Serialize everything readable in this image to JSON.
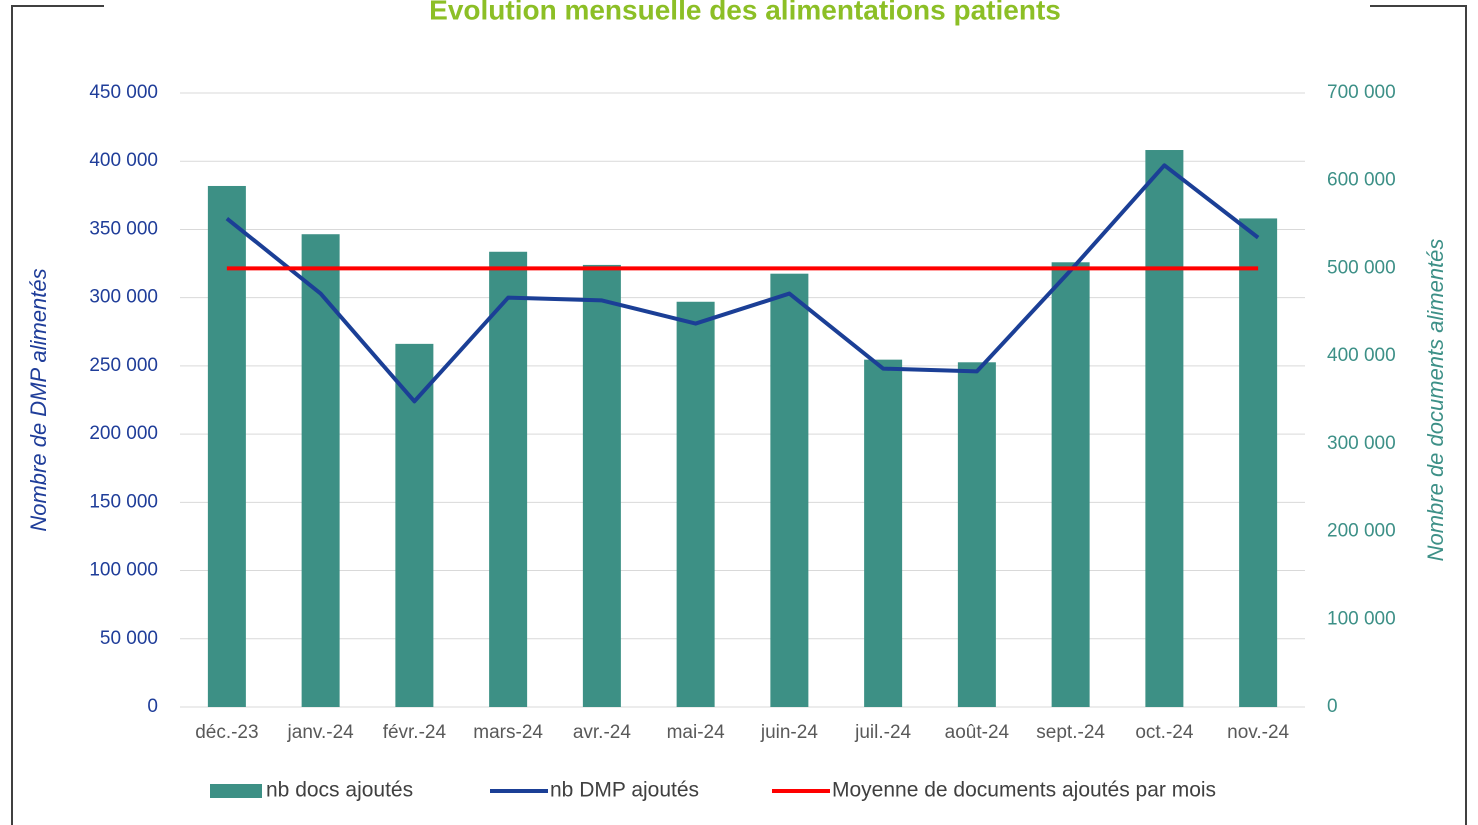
{
  "chart_data": {
    "type": "bar-line",
    "title": "Évolution mensuelle des alimentations patients",
    "ylabel": "Nombre de DMP alimentés",
    "y2label": "Nombre de documents alimentés",
    "categories": [
      "déc.-23",
      "janv.-24",
      "févr.-24",
      "mars-24",
      "avr.-24",
      "mai-24",
      "juin-24",
      "juil.-24",
      "août-24",
      "sept.-24",
      "oct.-24",
      "nov.-24"
    ],
    "series": [
      {
        "name": "nb docs ajoutés",
        "type": "bar",
        "axis": "y2",
        "color": "#3d9085",
        "values": [
          594000,
          539000,
          414000,
          519000,
          504000,
          462000,
          494000,
          396000,
          393000,
          507000,
          635000,
          557000
        ]
      },
      {
        "name": "nb DMP ajoutés",
        "type": "line",
        "axis": "y",
        "color": "#1b3f96",
        "values": [
          358000,
          303000,
          224000,
          300000,
          298000,
          281000,
          303000,
          248000,
          246000,
          320000,
          397000,
          344000
        ]
      },
      {
        "name": "Moyenne de documents ajoutés par mois",
        "type": "line",
        "axis": "y2",
        "color": "#ff0000",
        "values": [
          500000,
          500000,
          500000,
          500000,
          500000,
          500000,
          500000,
          500000,
          500000,
          500000,
          500000,
          500000
        ]
      }
    ],
    "ylim": [
      0,
      450000
    ],
    "yticks": [
      0,
      {
        "value": 50000,
        "label": "50 000"
      },
      {
        "value": 100000,
        "label": "100 000"
      },
      {
        "value": 150000,
        "label": "150 000"
      },
      {
        "value": 200000,
        "label": "200 000"
      },
      {
        "value": 250000,
        "label": "250 000"
      },
      {
        "value": 300000,
        "label": "300 000"
      },
      {
        "value": 350000,
        "label": "350 000"
      },
      {
        "value": 400000,
        "label": "400 000"
      },
      {
        "value": 450000,
        "label": "450 000"
      }
    ],
    "y2lim": [
      0,
      700000
    ],
    "y2ticks": [
      0,
      {
        "value": 100000,
        "label": "100 000"
      },
      {
        "value": 200000,
        "label": "200 000"
      },
      {
        "value": 300000,
        "label": "300 000"
      },
      {
        "value": 400000,
        "label": "400 000"
      },
      {
        "value": 500000,
        "label": "500 000"
      },
      {
        "value": 600000,
        "label": "600 000"
      },
      {
        "value": 700000,
        "label": "700 000"
      }
    ],
    "grid": true,
    "legend": "bottom"
  }
}
